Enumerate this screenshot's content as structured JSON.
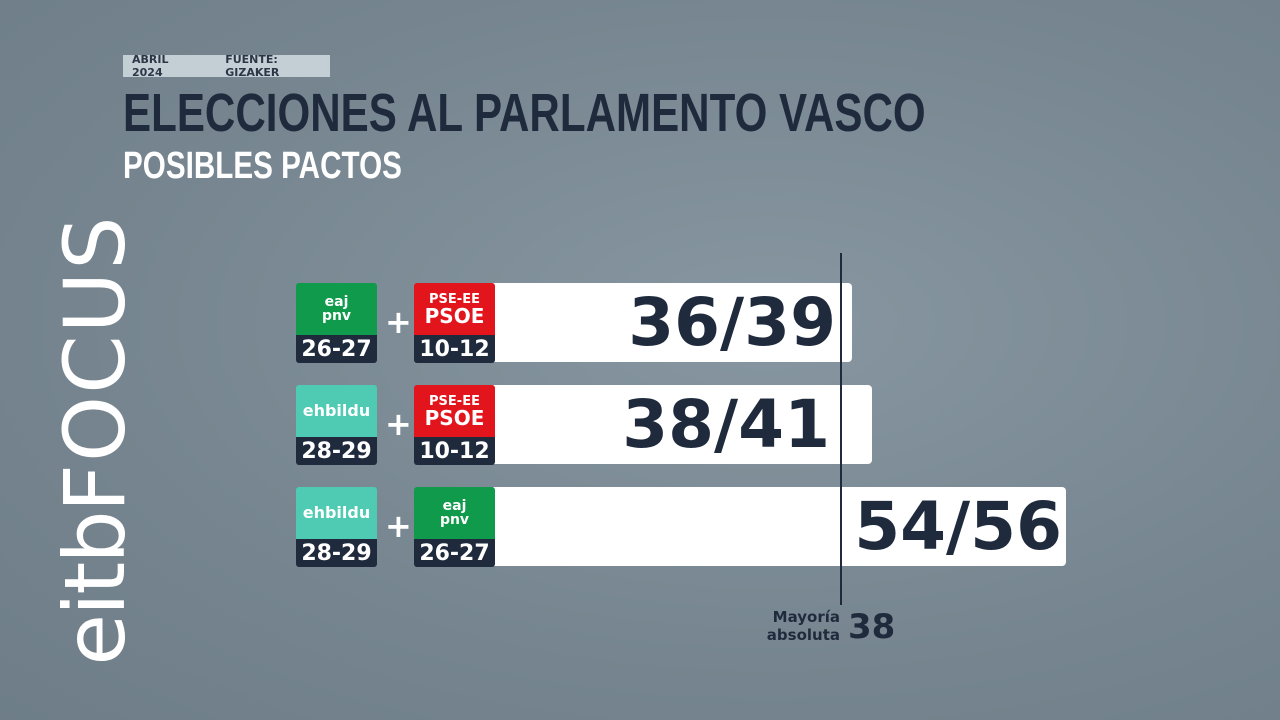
{
  "header": {
    "date": "ABRIL 2024",
    "source": "FUENTE: GIZAKER",
    "title": "ELECCIONES AL PARLAMENTO VASCO",
    "subtitle": "POSIBLES PACTOS"
  },
  "brand": {
    "prefix": "eitb",
    "suffix": "FOCUS"
  },
  "pacts": [
    {
      "parties": [
        {
          "kind": "pnv",
          "logo": [
            "eaj",
            "pnv"
          ],
          "seats": "26-27"
        },
        {
          "kind": "psoe",
          "logo": [
            "PSE-EE",
            "PSOE"
          ],
          "seats": "10-12"
        }
      ],
      "plus": "+",
      "total": "36/39"
    },
    {
      "parties": [
        {
          "kind": "bildu",
          "logo": [
            "ehbildu"
          ],
          "seats": "28-29"
        },
        {
          "kind": "psoe",
          "logo": [
            "PSE-EE",
            "PSOE"
          ],
          "seats": "10-12"
        }
      ],
      "plus": "+",
      "total": "38/41"
    },
    {
      "parties": [
        {
          "kind": "bildu",
          "logo": [
            "ehbildu"
          ],
          "seats": "28-29"
        },
        {
          "kind": "pnv",
          "logo": [
            "eaj",
            "pnv"
          ],
          "seats": "26-27"
        }
      ],
      "plus": "+",
      "total": "54/56"
    }
  ],
  "majority": {
    "label": [
      "Mayoría",
      "absoluta"
    ],
    "value": "38"
  }
}
